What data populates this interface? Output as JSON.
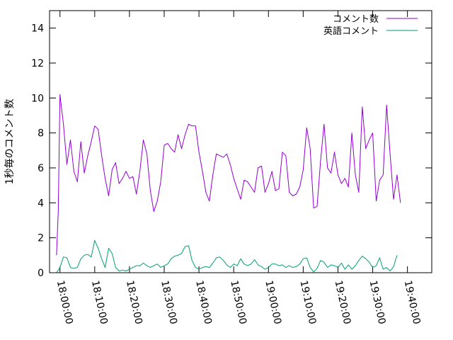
{
  "chart_data": {
    "type": "line",
    "title": "",
    "xlabel": "",
    "ylabel": "1秒毎のコメント数",
    "x_ticks": [
      "18:00:00",
      "18:10:00",
      "18:20:00",
      "18:30:00",
      "18:40:00",
      "18:50:00",
      "19:00:00",
      "19:10:00",
      "19:20:00",
      "19:30:00",
      "19:40:00"
    ],
    "y_ticks": [
      "0",
      "2",
      "4",
      "6",
      "8",
      "10",
      "12",
      "14"
    ],
    "xlim_minutes": [
      -3,
      107
    ],
    "ylim": [
      0,
      15
    ],
    "legend_position": "top-right",
    "series": [
      {
        "name": "コメント数",
        "color": "#9400d3",
        "values": [
          [
            -1,
            1.0
          ],
          [
            -0.5,
            3.5
          ],
          [
            0,
            10.2
          ],
          [
            1,
            8.5
          ],
          [
            2,
            6.2
          ],
          [
            3,
            7.6
          ],
          [
            4,
            5.8
          ],
          [
            5,
            5.2
          ],
          [
            6,
            7.5
          ],
          [
            7,
            5.7
          ],
          [
            8,
            6.7
          ],
          [
            9,
            7.5
          ],
          [
            10,
            8.4
          ],
          [
            11,
            8.2
          ],
          [
            12,
            6.7
          ],
          [
            13,
            5.4
          ],
          [
            14,
            4.4
          ],
          [
            15,
            5.9
          ],
          [
            16,
            6.3
          ],
          [
            17,
            5.1
          ],
          [
            18,
            5.4
          ],
          [
            19,
            5.8
          ],
          [
            20,
            5.4
          ],
          [
            21,
            5.5
          ],
          [
            22,
            4.5
          ],
          [
            23,
            5.8
          ],
          [
            24,
            7.6
          ],
          [
            25,
            6.8
          ],
          [
            26,
            4.7
          ],
          [
            27,
            3.5
          ],
          [
            28,
            4.1
          ],
          [
            29,
            5.2
          ],
          [
            30,
            7.3
          ],
          [
            31,
            7.4
          ],
          [
            32,
            7.1
          ],
          [
            33,
            6.9
          ],
          [
            34,
            7.9
          ],
          [
            35,
            7.1
          ],
          [
            36,
            7.9
          ],
          [
            37,
            8.5
          ],
          [
            38,
            8.4
          ],
          [
            39,
            8.4
          ],
          [
            40,
            6.9
          ],
          [
            41,
            5.8
          ],
          [
            42,
            4.6
          ],
          [
            43,
            4.1
          ],
          [
            44,
            5.6
          ],
          [
            45,
            6.8
          ],
          [
            46,
            6.7
          ],
          [
            47,
            6.6
          ],
          [
            48,
            6.8
          ],
          [
            49,
            6.2
          ],
          [
            50,
            5.4
          ],
          [
            51,
            4.8
          ],
          [
            52,
            4.2
          ],
          [
            53,
            5.3
          ],
          [
            54,
            5.2
          ],
          [
            55,
            4.9
          ],
          [
            56,
            4.6
          ],
          [
            57,
            6.0
          ],
          [
            58,
            6.1
          ],
          [
            59,
            4.6
          ],
          [
            60,
            5.1
          ],
          [
            61,
            5.8
          ],
          [
            62,
            4.7
          ],
          [
            63,
            4.8
          ],
          [
            64,
            6.9
          ],
          [
            65,
            6.7
          ],
          [
            66,
            4.6
          ],
          [
            67,
            4.4
          ],
          [
            68,
            4.5
          ],
          [
            69,
            4.9
          ],
          [
            70,
            5.9
          ],
          [
            71,
            8.3
          ],
          [
            72,
            7.1
          ],
          [
            73,
            3.7
          ],
          [
            74,
            3.8
          ],
          [
            75,
            6.4
          ],
          [
            76,
            8.5
          ],
          [
            77,
            6.0
          ],
          [
            78,
            5.7
          ],
          [
            79,
            6.9
          ],
          [
            80,
            5.6
          ],
          [
            81,
            5.1
          ],
          [
            82,
            5.4
          ],
          [
            83,
            4.9
          ],
          [
            84,
            8.0
          ],
          [
            85,
            5.6
          ],
          [
            86,
            4.6
          ],
          [
            87,
            9.5
          ],
          [
            88,
            7.1
          ],
          [
            89,
            7.6
          ],
          [
            90,
            8.0
          ],
          [
            91,
            4.1
          ],
          [
            92,
            5.3
          ],
          [
            93,
            5.6
          ],
          [
            94,
            9.6
          ],
          [
            95,
            6.8
          ],
          [
            96,
            4.2
          ],
          [
            97,
            5.6
          ],
          [
            98,
            4.0
          ]
        ]
      },
      {
        "name": "英語コメント",
        "color": "#009e73",
        "values": [
          [
            -1,
            0.0
          ],
          [
            0,
            0.3
          ],
          [
            1,
            0.9
          ],
          [
            2,
            0.85
          ],
          [
            3,
            0.3
          ],
          [
            4,
            0.25
          ],
          [
            5,
            0.3
          ],
          [
            6,
            0.8
          ],
          [
            7,
            1.0
          ],
          [
            8,
            1.05
          ],
          [
            9,
            0.9
          ],
          [
            10,
            1.85
          ],
          [
            11,
            1.4
          ],
          [
            12,
            0.8
          ],
          [
            13,
            0.3
          ],
          [
            14,
            1.4
          ],
          [
            15,
            1.1
          ],
          [
            16,
            0.3
          ],
          [
            17,
            0.1
          ],
          [
            18,
            0.15
          ],
          [
            19,
            0.1
          ],
          [
            20,
            0.2
          ],
          [
            21,
            0.3
          ],
          [
            22,
            0.4
          ],
          [
            23,
            0.4
          ],
          [
            24,
            0.55
          ],
          [
            25,
            0.4
          ],
          [
            26,
            0.3
          ],
          [
            27,
            0.4
          ],
          [
            28,
            0.5
          ],
          [
            29,
            0.3
          ],
          [
            30,
            0.4
          ],
          [
            31,
            0.5
          ],
          [
            32,
            0.8
          ],
          [
            33,
            0.95
          ],
          [
            34,
            1.0
          ],
          [
            35,
            1.1
          ],
          [
            36,
            1.5
          ],
          [
            37,
            1.55
          ],
          [
            38,
            0.7
          ],
          [
            39,
            0.3
          ],
          [
            40,
            0.2
          ],
          [
            41,
            0.3
          ],
          [
            42,
            0.35
          ],
          [
            43,
            0.3
          ],
          [
            44,
            0.55
          ],
          [
            45,
            0.85
          ],
          [
            46,
            0.9
          ],
          [
            47,
            0.7
          ],
          [
            48,
            0.45
          ],
          [
            49,
            0.3
          ],
          [
            50,
            0.5
          ],
          [
            51,
            0.4
          ],
          [
            52,
            0.8
          ],
          [
            53,
            0.5
          ],
          [
            54,
            0.4
          ],
          [
            55,
            0.5
          ],
          [
            56,
            0.75
          ],
          [
            57,
            0.45
          ],
          [
            58,
            0.35
          ],
          [
            59,
            0.2
          ],
          [
            60,
            0.3
          ],
          [
            61,
            0.5
          ],
          [
            62,
            0.5
          ],
          [
            63,
            0.4
          ],
          [
            64,
            0.45
          ],
          [
            65,
            0.3
          ],
          [
            66,
            0.4
          ],
          [
            67,
            0.3
          ],
          [
            68,
            0.35
          ],
          [
            69,
            0.5
          ],
          [
            70,
            0.8
          ],
          [
            71,
            0.85
          ],
          [
            72,
            0.3
          ],
          [
            73,
            0.05
          ],
          [
            74,
            0.25
          ],
          [
            75,
            0.7
          ],
          [
            76,
            0.6
          ],
          [
            77,
            0.3
          ],
          [
            78,
            0.45
          ],
          [
            79,
            0.4
          ],
          [
            80,
            0.3
          ],
          [
            81,
            0.55
          ],
          [
            82,
            0.2
          ],
          [
            83,
            0.45
          ],
          [
            84,
            0.2
          ],
          [
            85,
            0.4
          ],
          [
            86,
            0.7
          ],
          [
            87,
            0.95
          ],
          [
            88,
            0.8
          ],
          [
            89,
            0.6
          ],
          [
            90,
            0.3
          ],
          [
            91,
            0.4
          ],
          [
            92,
            0.85
          ],
          [
            93,
            0.2
          ],
          [
            94,
            0.3
          ],
          [
            95,
            0.1
          ],
          [
            96,
            0.35
          ],
          [
            97,
            1.0
          ]
        ]
      }
    ]
  }
}
